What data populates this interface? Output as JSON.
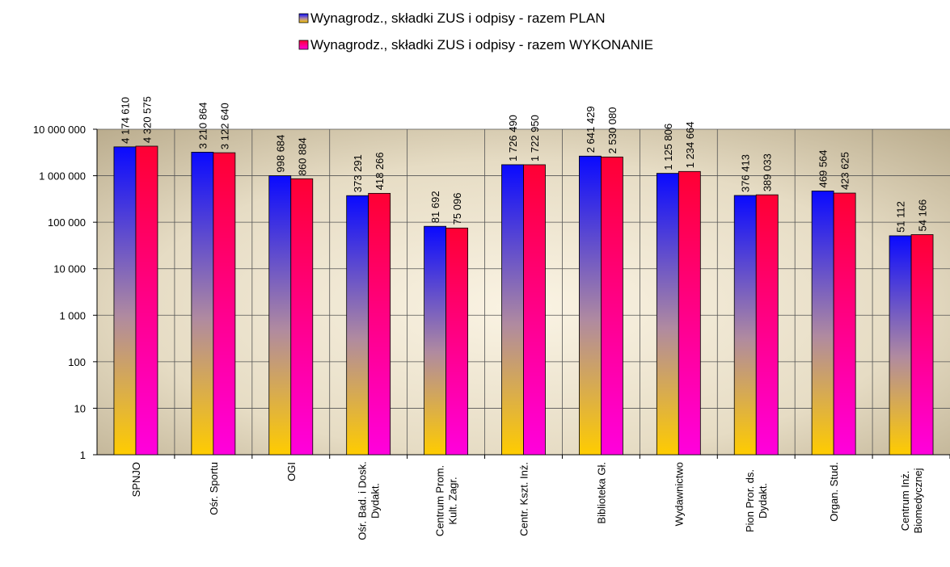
{
  "chart_data": {
    "type": "bar",
    "log_scale": true,
    "grid": true,
    "legend_position": "top",
    "categories": [
      "SPNJO",
      "Ośr. Sportu",
      "OGI",
      "Ośr. Bad. i Dosk.\nDydakt.",
      "Centrum Prom.\nKult. Zagr.",
      "Centr. Kszt. Inż.",
      "Biblioteka Gł.",
      "Wydawnictwo",
      "Pion Pror. ds.\nDydakt.",
      "Organ. Stud.",
      "Centrum Inż.\nBiomedycznej"
    ],
    "series": [
      {
        "name": "Wynagrodz., składki ZUS i odpisy - razem PLAN",
        "color": "#0a0aff",
        "values": [
          4174610,
          3210864,
          998684,
          373291,
          81692,
          1726490,
          2641429,
          1125806,
          376413,
          469564,
          51112
        ],
        "value_labels": [
          "4 174 610",
          "3 210 864",
          "998 684",
          "373 291",
          "81 692",
          "1 726 490",
          "2 641 429",
          "1 125 806",
          "376 413",
          "469 564",
          "51 112"
        ]
      },
      {
        "name": "Wynagrodz., składki ZUS i odpisy - razem WYKONANIE",
        "color": "#ff0033",
        "values": [
          4320575,
          3122640,
          860884,
          418266,
          75096,
          1722950,
          2530080,
          1234664,
          389033,
          423625,
          54166
        ],
        "value_labels": [
          "4 320 575",
          "3 122 640",
          "860 884",
          "418 266",
          "75 096",
          "1 722 950",
          "2 530 080",
          "1 234 664",
          "389 033",
          "423 625",
          "54 166"
        ]
      }
    ],
    "ylim": [
      1,
      10000000
    ],
    "yticks": [
      {
        "value": 1,
        "label": "1"
      },
      {
        "value": 10,
        "label": "10"
      },
      {
        "value": 100,
        "label": "100"
      },
      {
        "value": 1000,
        "label": "1 000"
      },
      {
        "value": 10000,
        "label": "10 000"
      },
      {
        "value": 100000,
        "label": "100 000"
      },
      {
        "value": 1000000,
        "label": "1 000 000"
      },
      {
        "value": 10000000,
        "label": "10 000 000"
      }
    ]
  }
}
